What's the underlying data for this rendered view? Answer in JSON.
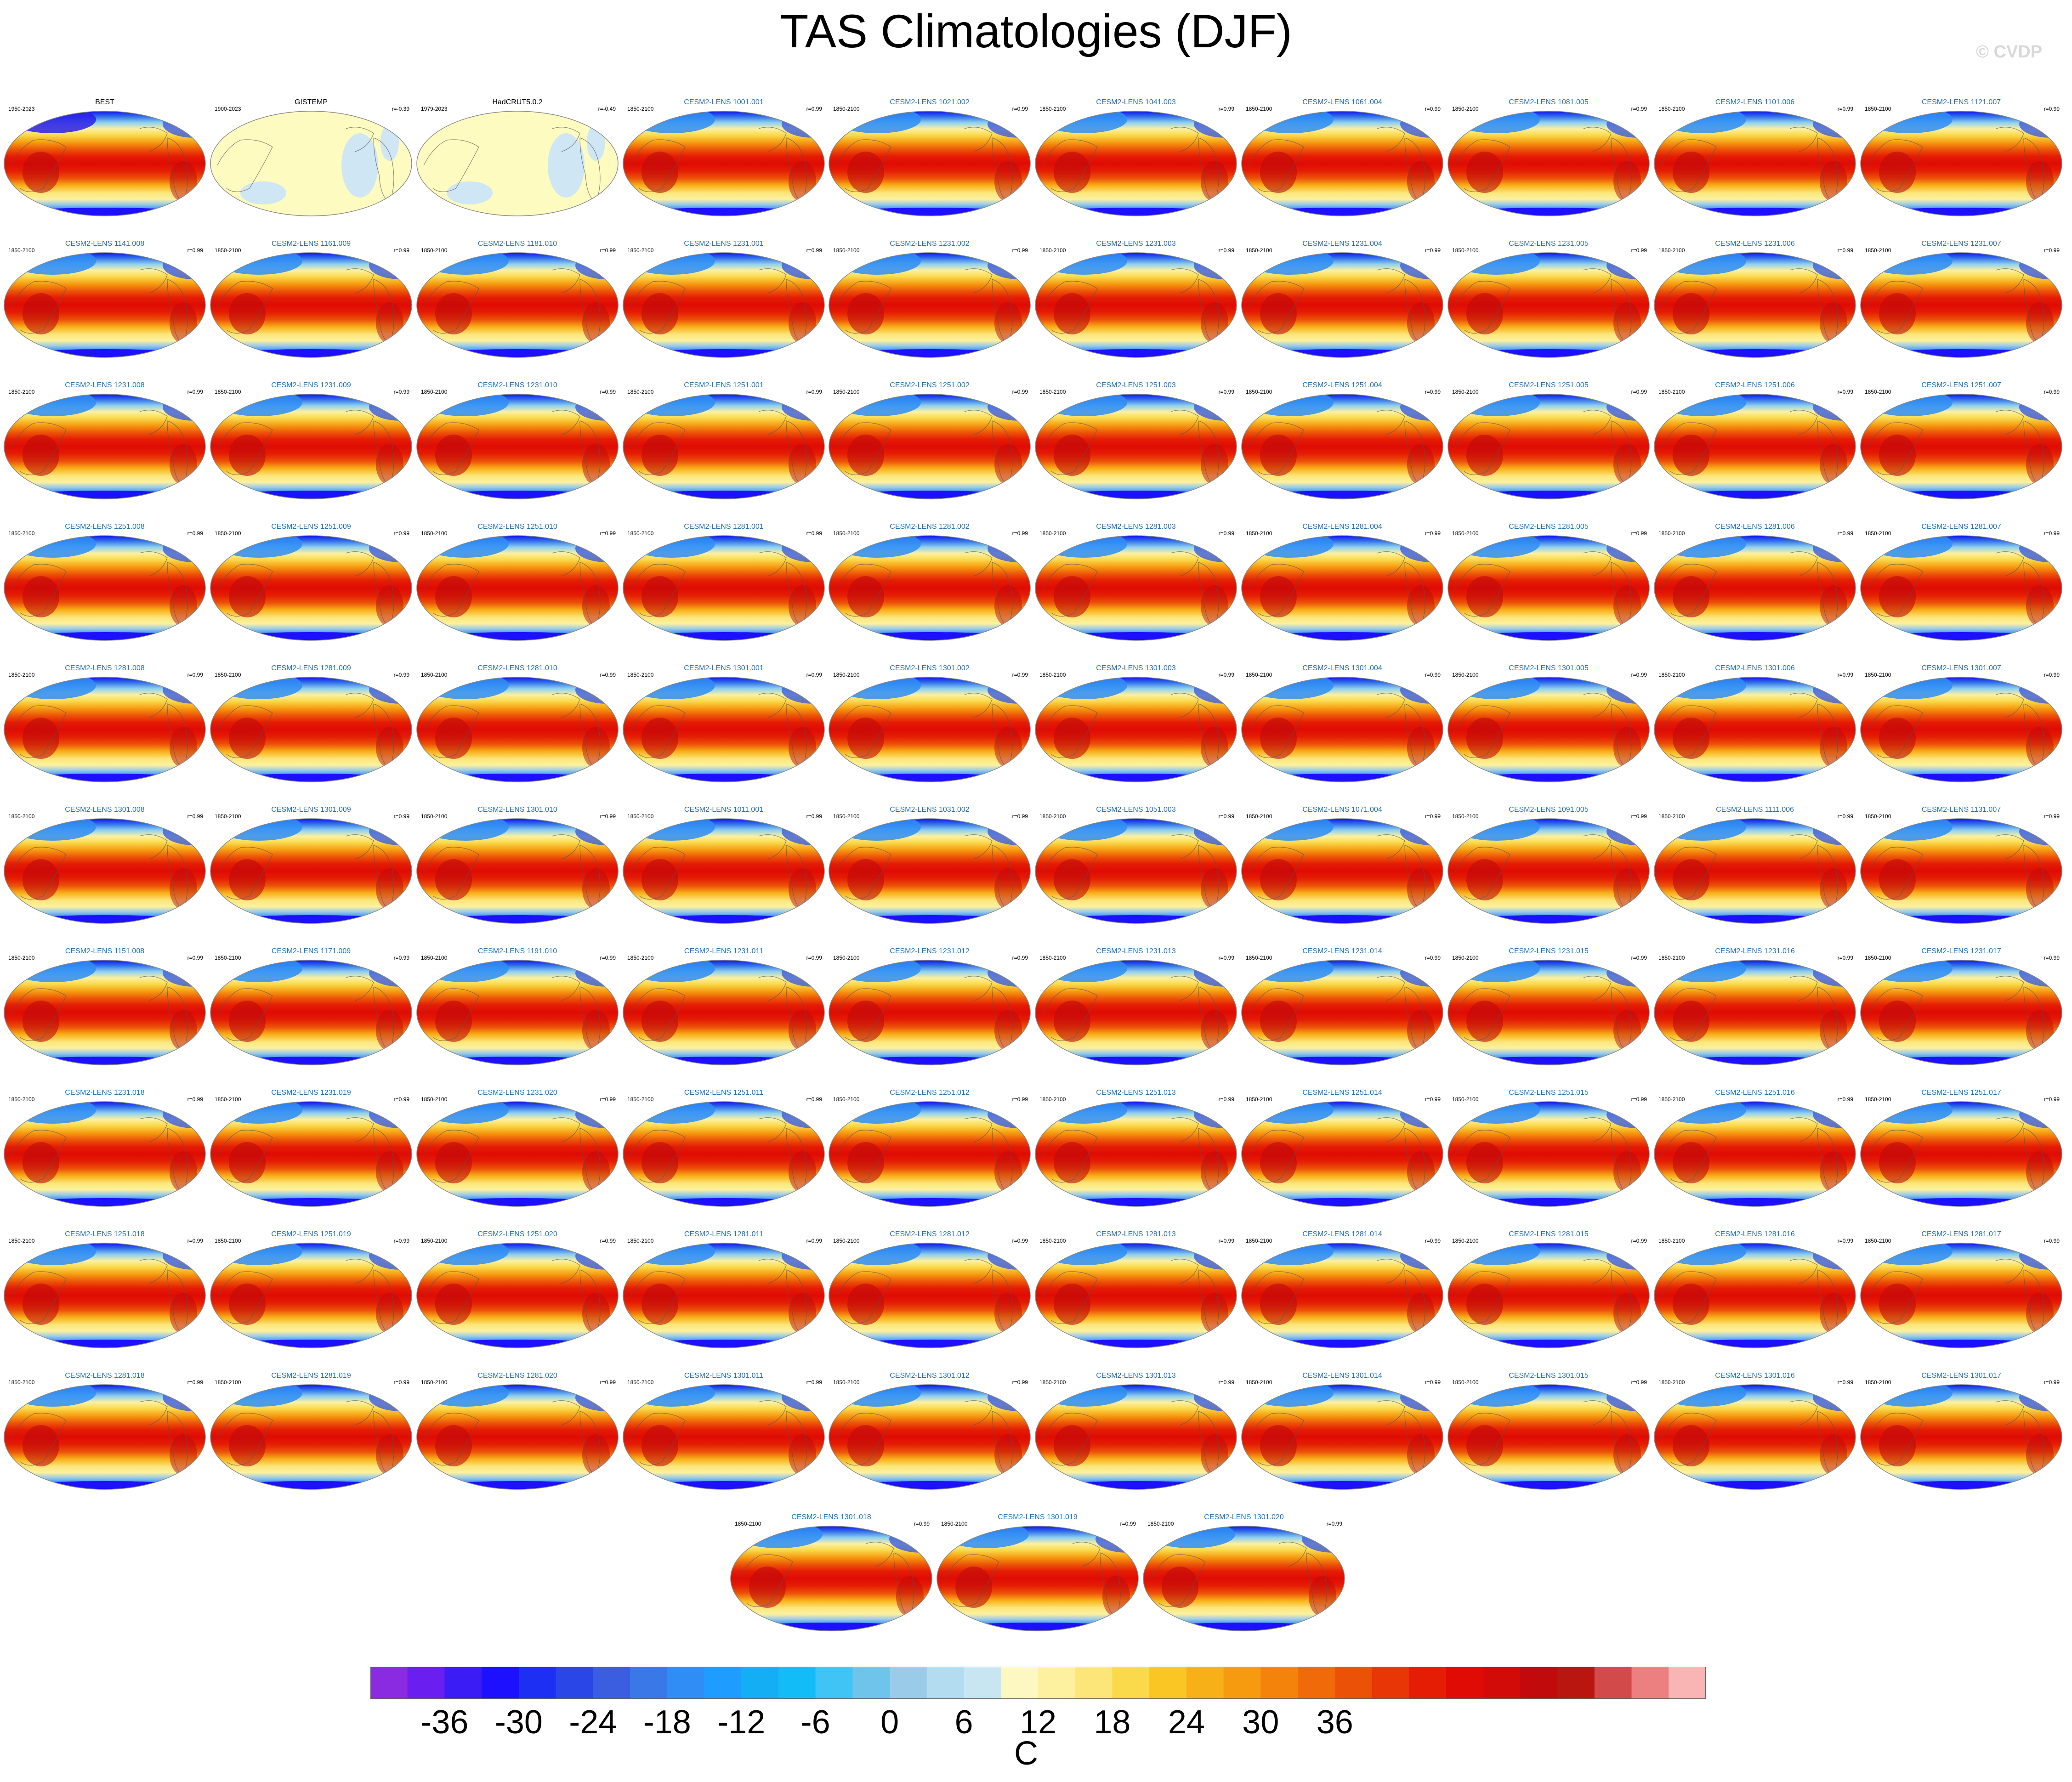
{
  "title": "TAS Climatologies (DJF)",
  "watermark": "© CVDP",
  "chart_data": {
    "type": "heatmap",
    "title": "TAS Climatologies (DJF)",
    "projection": "global ellipse (Robinson-like), Pacific-centered",
    "panels": [
      {
        "name": "BEST",
        "period": "1950-2023",
        "r": ""
      },
      {
        "name": "GISTEMP",
        "period": "1900-2023",
        "r": "r=-0.39"
      },
      {
        "name": "HadCRUT5.0.2",
        "period": "1979-2023",
        "r": "r=-0.49"
      },
      {
        "name": "CESM2-LENS 1001.001",
        "period": "1850-2100",
        "r": "r=0.99"
      },
      {
        "name": "CESM2-LENS 1021.002",
        "period": "1850-2100",
        "r": "r=0.99"
      },
      {
        "name": "CESM2-LENS 1041.003",
        "period": "1850-2100",
        "r": "r=0.99"
      },
      {
        "name": "CESM2-LENS 1061.004",
        "period": "1850-2100",
        "r": "r=0.99"
      },
      {
        "name": "CESM2-LENS 1081.005",
        "period": "1850-2100",
        "r": "r=0.99"
      },
      {
        "name": "CESM2-LENS 1101.006",
        "period": "1850-2100",
        "r": "r=0.99"
      },
      {
        "name": "CESM2-LENS 1121.007",
        "period": "1850-2100",
        "r": "r=0.99"
      },
      {
        "name": "CESM2-LENS 1141.008",
        "period": "1850-2100",
        "r": "r=0.99"
      },
      {
        "name": "CESM2-LENS 1161.009",
        "period": "1850-2100",
        "r": "r=0.99"
      },
      {
        "name": "CESM2-LENS 1181.010",
        "period": "1850-2100",
        "r": "r=0.99"
      },
      {
        "name": "CESM2-LENS 1231.001",
        "period": "1850-2100",
        "r": "r=0.99"
      },
      {
        "name": "CESM2-LENS 1231.002",
        "period": "1850-2100",
        "r": "r=0.99"
      },
      {
        "name": "CESM2-LENS 1231.003",
        "period": "1850-2100",
        "r": "r=0.99"
      },
      {
        "name": "CESM2-LENS 1231.004",
        "period": "1850-2100",
        "r": "r=0.99"
      },
      {
        "name": "CESM2-LENS 1231.005",
        "period": "1850-2100",
        "r": "r=0.99"
      },
      {
        "name": "CESM2-LENS 1231.006",
        "period": "1850-2100",
        "r": "r=0.99"
      },
      {
        "name": "CESM2-LENS 1231.007",
        "period": "1850-2100",
        "r": "r=0.99"
      },
      {
        "name": "CESM2-LENS 1231.008",
        "period": "1850-2100",
        "r": "r=0.99"
      },
      {
        "name": "CESM2-LENS 1231.009",
        "period": "1850-2100",
        "r": "r=0.99"
      },
      {
        "name": "CESM2-LENS 1231.010",
        "period": "1850-2100",
        "r": "r=0.99"
      },
      {
        "name": "CESM2-LENS 1251.001",
        "period": "1850-2100",
        "r": "r=0.99"
      },
      {
        "name": "CESM2-LENS 1251.002",
        "period": "1850-2100",
        "r": "r=0.99"
      },
      {
        "name": "CESM2-LENS 1251.003",
        "period": "1850-2100",
        "r": "r=0.99"
      },
      {
        "name": "CESM2-LENS 1251.004",
        "period": "1850-2100",
        "r": "r=0.99"
      },
      {
        "name": "CESM2-LENS 1251.005",
        "period": "1850-2100",
        "r": "r=0.99"
      },
      {
        "name": "CESM2-LENS 1251.006",
        "period": "1850-2100",
        "r": "r=0.99"
      },
      {
        "name": "CESM2-LENS 1251.007",
        "period": "1850-2100",
        "r": "r=0.99"
      },
      {
        "name": "CESM2-LENS 1251.008",
        "period": "1850-2100",
        "r": "r=0.99"
      },
      {
        "name": "CESM2-LENS 1251.009",
        "period": "1850-2100",
        "r": "r=0.99"
      },
      {
        "name": "CESM2-LENS 1251.010",
        "period": "1850-2100",
        "r": "r=0.99"
      },
      {
        "name": "CESM2-LENS 1281.001",
        "period": "1850-2100",
        "r": "r=0.99"
      },
      {
        "name": "CESM2-LENS 1281.002",
        "period": "1850-2100",
        "r": "r=0.99"
      },
      {
        "name": "CESM2-LENS 1281.003",
        "period": "1850-2100",
        "r": "r=0.99"
      },
      {
        "name": "CESM2-LENS 1281.004",
        "period": "1850-2100",
        "r": "r=0.99"
      },
      {
        "name": "CESM2-LENS 1281.005",
        "period": "1850-2100",
        "r": "r=0.99"
      },
      {
        "name": "CESM2-LENS 1281.006",
        "period": "1850-2100",
        "r": "r=0.99"
      },
      {
        "name": "CESM2-LENS 1281.007",
        "period": "1850-2100",
        "r": "r=0.99"
      },
      {
        "name": "CESM2-LENS 1281.008",
        "period": "1850-2100",
        "r": "r=0.99"
      },
      {
        "name": "CESM2-LENS 1281.009",
        "period": "1850-2100",
        "r": "r=0.99"
      },
      {
        "name": "CESM2-LENS 1281.010",
        "period": "1850-2100",
        "r": "r=0.99"
      },
      {
        "name": "CESM2-LENS 1301.001",
        "period": "1850-2100",
        "r": "r=0.99"
      },
      {
        "name": "CESM2-LENS 1301.002",
        "period": "1850-2100",
        "r": "r=0.99"
      },
      {
        "name": "CESM2-LENS 1301.003",
        "period": "1850-2100",
        "r": "r=0.99"
      },
      {
        "name": "CESM2-LENS 1301.004",
        "period": "1850-2100",
        "r": "r=0.99"
      },
      {
        "name": "CESM2-LENS 1301.005",
        "period": "1850-2100",
        "r": "r=0.99"
      },
      {
        "name": "CESM2-LENS 1301.006",
        "period": "1850-2100",
        "r": "r=0.99"
      },
      {
        "name": "CESM2-LENS 1301.007",
        "period": "1850-2100",
        "r": "r=0.99"
      },
      {
        "name": "CESM2-LENS 1301.008",
        "period": "1850-2100",
        "r": "r=0.99"
      },
      {
        "name": "CESM2-LENS 1301.009",
        "period": "1850-2100",
        "r": "r=0.99"
      },
      {
        "name": "CESM2-LENS 1301.010",
        "period": "1850-2100",
        "r": "r=0.99"
      },
      {
        "name": "CESM2-LENS 1011.001",
        "period": "1850-2100",
        "r": "r=0.99"
      },
      {
        "name": "CESM2-LENS 1031.002",
        "period": "1850-2100",
        "r": "r=0.99"
      },
      {
        "name": "CESM2-LENS 1051.003",
        "period": "1850-2100",
        "r": "r=0.99"
      },
      {
        "name": "CESM2-LENS 1071.004",
        "period": "1850-2100",
        "r": "r=0.99"
      },
      {
        "name": "CESM2-LENS 1091.005",
        "period": "1850-2100",
        "r": "r=0.99"
      },
      {
        "name": "CESM2-LENS 1111.006",
        "period": "1850-2100",
        "r": "r=0.99"
      },
      {
        "name": "CESM2-LENS 1131.007",
        "period": "1850-2100",
        "r": "r=0.99"
      },
      {
        "name": "CESM2-LENS 1151.008",
        "period": "1850-2100",
        "r": "r=0.99"
      },
      {
        "name": "CESM2-LENS 1171.009",
        "period": "1850-2100",
        "r": "r=0.99"
      },
      {
        "name": "CESM2-LENS 1191.010",
        "period": "1850-2100",
        "r": "r=0.99"
      },
      {
        "name": "CESM2-LENS 1231.011",
        "period": "1850-2100",
        "r": "r=0.99"
      },
      {
        "name": "CESM2-LENS 1231.012",
        "period": "1850-2100",
        "r": "r=0.99"
      },
      {
        "name": "CESM2-LENS 1231.013",
        "period": "1850-2100",
        "r": "r=0.99"
      },
      {
        "name": "CESM2-LENS 1231.014",
        "period": "1850-2100",
        "r": "r=0.99"
      },
      {
        "name": "CESM2-LENS 1231.015",
        "period": "1850-2100",
        "r": "r=0.99"
      },
      {
        "name": "CESM2-LENS 1231.016",
        "period": "1850-2100",
        "r": "r=0.99"
      },
      {
        "name": "CESM2-LENS 1231.017",
        "period": "1850-2100",
        "r": "r=0.99"
      },
      {
        "name": "CESM2-LENS 1231.018",
        "period": "1850-2100",
        "r": "r=0.99"
      },
      {
        "name": "CESM2-LENS 1231.019",
        "period": "1850-2100",
        "r": "r=0.99"
      },
      {
        "name": "CESM2-LENS 1231.020",
        "period": "1850-2100",
        "r": "r=0.99"
      },
      {
        "name": "CESM2-LENS 1251.011",
        "period": "1850-2100",
        "r": "r=0.99"
      },
      {
        "name": "CESM2-LENS 1251.012",
        "period": "1850-2100",
        "r": "r=0.99"
      },
      {
        "name": "CESM2-LENS 1251.013",
        "period": "1850-2100",
        "r": "r=0.99"
      },
      {
        "name": "CESM2-LENS 1251.014",
        "period": "1850-2100",
        "r": "r=0.99"
      },
      {
        "name": "CESM2-LENS 1251.015",
        "period": "1850-2100",
        "r": "r=0.99"
      },
      {
        "name": "CESM2-LENS 1251.016",
        "period": "1850-2100",
        "r": "r=0.99"
      },
      {
        "name": "CESM2-LENS 1251.017",
        "period": "1850-2100",
        "r": "r=0.99"
      },
      {
        "name": "CESM2-LENS 1251.018",
        "period": "1850-2100",
        "r": "r=0.99"
      },
      {
        "name": "CESM2-LENS 1251.019",
        "period": "1850-2100",
        "r": "r=0.99"
      },
      {
        "name": "CESM2-LENS 1251.020",
        "period": "1850-2100",
        "r": "r=0.99"
      },
      {
        "name": "CESM2-LENS 1281.011",
        "period": "1850-2100",
        "r": "r=0.99"
      },
      {
        "name": "CESM2-LENS 1281.012",
        "period": "1850-2100",
        "r": "r=0.99"
      },
      {
        "name": "CESM2-LENS 1281.013",
        "period": "1850-2100",
        "r": "r=0.99"
      },
      {
        "name": "CESM2-LENS 1281.014",
        "period": "1850-2100",
        "r": "r=0.99"
      },
      {
        "name": "CESM2-LENS 1281.015",
        "period": "1850-2100",
        "r": "r=0.99"
      },
      {
        "name": "CESM2-LENS 1281.016",
        "period": "1850-2100",
        "r": "r=0.99"
      },
      {
        "name": "CESM2-LENS 1281.017",
        "period": "1850-2100",
        "r": "r=0.99"
      },
      {
        "name": "CESM2-LENS 1281.018",
        "period": "1850-2100",
        "r": "r=0.99"
      },
      {
        "name": "CESM2-LENS 1281.019",
        "period": "1850-2100",
        "r": "r=0.99"
      },
      {
        "name": "CESM2-LENS 1281.020",
        "period": "1850-2100",
        "r": "r=0.99"
      },
      {
        "name": "CESM2-LENS 1301.011",
        "period": "1850-2100",
        "r": "r=0.99"
      },
      {
        "name": "CESM2-LENS 1301.012",
        "period": "1850-2100",
        "r": "r=0.99"
      },
      {
        "name": "CESM2-LENS 1301.013",
        "period": "1850-2100",
        "r": "r=0.99"
      },
      {
        "name": "CESM2-LENS 1301.014",
        "period": "1850-2100",
        "r": "r=0.99"
      },
      {
        "name": "CESM2-LENS 1301.015",
        "period": "1850-2100",
        "r": "r=0.99"
      },
      {
        "name": "CESM2-LENS 1301.016",
        "period": "1850-2100",
        "r": "r=0.99"
      },
      {
        "name": "CESM2-LENS 1301.017",
        "period": "1850-2100",
        "r": "r=0.99"
      },
      {
        "name": "CESM2-LENS 1301.018",
        "period": "1850-2100",
        "r": "r=0.99"
      },
      {
        "name": "CESM2-LENS 1301.019",
        "period": "1850-2100",
        "r": "r=0.99"
      },
      {
        "name": "CESM2-LENS 1301.020",
        "period": "1850-2100",
        "r": "r=0.99"
      }
    ],
    "colorbar": {
      "unit": "C",
      "tick_labels": [
        "-36",
        "-30",
        "-24",
        "-18",
        "-12",
        "-6",
        "0",
        "6",
        "12",
        "18",
        "24",
        "30",
        "36"
      ],
      "colors": [
        "#8a2be2",
        "#6a1ef0",
        "#3b1cf5",
        "#1d10ff",
        "#1c2ff2",
        "#2a46e6",
        "#3b5de0",
        "#3a78e8",
        "#2f8df5",
        "#1e9cff",
        "#14aef5",
        "#12bdf7",
        "#40c4f5",
        "#6fc4ec",
        "#9acbe8",
        "#b4dcf0",
        "#c8e6f2",
        "#fdf7c2",
        "#fdf1a0",
        "#fce67a",
        "#fad94a",
        "#f9c624",
        "#f8b018",
        "#f69a10",
        "#f4830c",
        "#f06a0a",
        "#ec5108",
        "#e83606",
        "#e51d04",
        "#df0b04",
        "#d20a08",
        "#c00a0c",
        "#b8160e",
        "#d24a4a",
        "#ec8080",
        "#f9b4b4"
      ]
    }
  }
}
